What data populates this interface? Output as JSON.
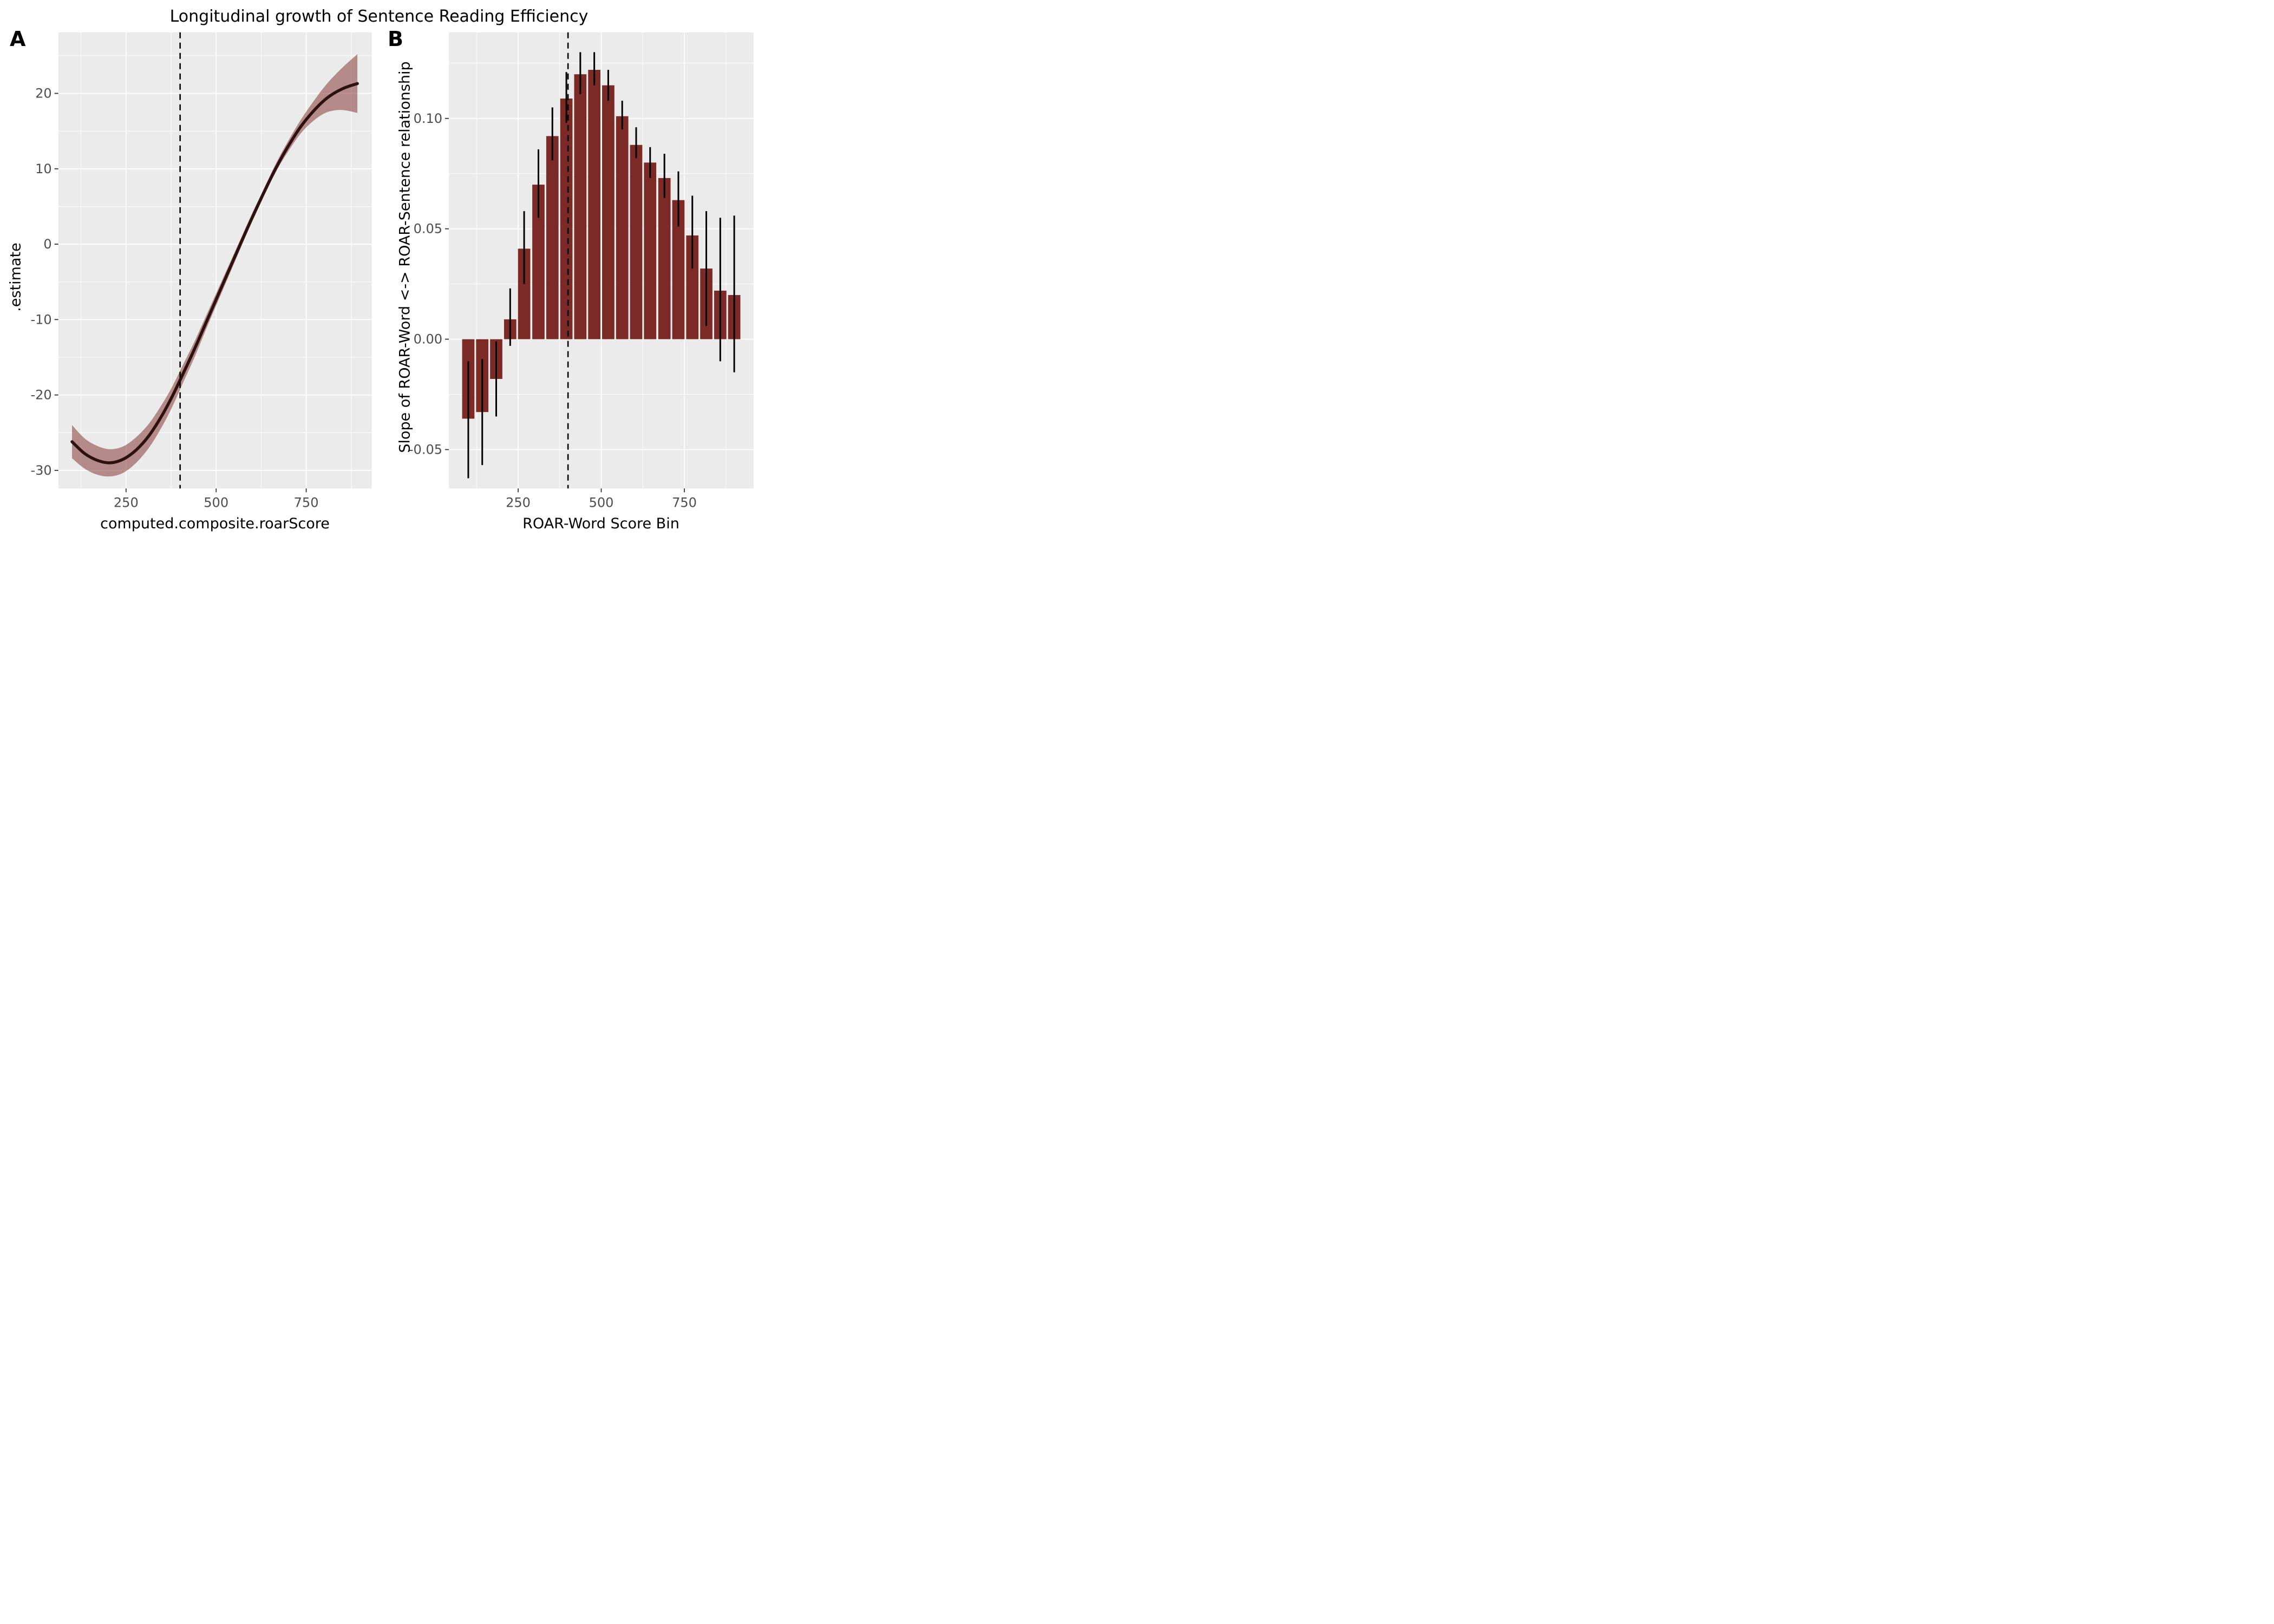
{
  "title": "Longitudinal growth of Sentence Reading Efficiency",
  "colors": {
    "panel_background": "#EBEBEB",
    "gridline": "#FFFFFF",
    "curve": "#2D1110",
    "ribbon": "#7C2A26",
    "ribbon_opacity": 0.5,
    "bar_fill": "#7C2A26",
    "error_bar": "#000000",
    "dashed_line": "#000000",
    "tick_label_text": "#4D4D4D",
    "tick_mark": "#333333",
    "axis_title_text": "#000000"
  },
  "panels": {
    "a": {
      "letter": "A",
      "x_title": "computed.composite.roarScore",
      "y_title": ".estimate",
      "x_tick_labels": [
        "250",
        "500",
        "750"
      ],
      "x_tick_values": [
        250,
        500,
        750
      ],
      "x_minor_values": [
        125,
        375,
        625,
        875
      ],
      "y_tick_labels": [
        "20",
        "10",
        "0",
        "-10",
        "-20",
        "-30"
      ],
      "y_tick_values": [
        20,
        10,
        0,
        -10,
        -20,
        -30
      ],
      "y_minor_values": [
        25,
        15,
        5,
        -5,
        -15,
        -25
      ],
      "xlim": [
        62,
        932
      ],
      "ylim": [
        -32.4,
        28.1
      ],
      "vline_x": 400
    },
    "b": {
      "letter": "B",
      "x_title": "ROAR-Word Score Bin",
      "y_title": "Slope of ROAR-Word <-> ROAR-Sentence relationship",
      "x_tick_labels": [
        "250",
        "500",
        "750"
      ],
      "x_tick_values": [
        250,
        500,
        750
      ],
      "x_minor_values": [
        125,
        375,
        625,
        875
      ],
      "y_tick_labels": [
        "0.10",
        "0.05",
        "0.00",
        "-0.05"
      ],
      "y_tick_values": [
        0.1,
        0.05,
        0.0,
        -0.05
      ],
      "y_minor_values": [
        0.125,
        0.075,
        0.025,
        -0.025
      ],
      "xlim": [
        41.5,
        958
      ],
      "ylim": [
        -0.0676,
        0.139
      ],
      "vline_x": 400
    }
  },
  "chart_data": [
    {
      "panel": "A",
      "type": "line",
      "title": "Longitudinal growth of Sentence Reading Efficiency",
      "xlabel": "computed.composite.roarScore",
      "ylabel": ".estimate",
      "xlim": [
        62,
        932
      ],
      "ylim": [
        -32.4,
        28.1
      ],
      "grid": true,
      "vline_x": 400,
      "x": [
        100,
        136,
        172,
        207,
        243,
        278,
        312,
        345,
        377,
        408,
        440,
        472,
        504,
        536,
        568,
        600,
        633,
        666,
        700,
        735,
        771,
        808,
        850,
        892
      ],
      "y": [
        -26.2,
        -27.8,
        -28.7,
        -29.0,
        -28.5,
        -27.3,
        -25.5,
        -23.1,
        -20.3,
        -17.2,
        -13.9,
        -10.4,
        -6.9,
        -3.4,
        0.1,
        3.5,
        6.9,
        10.1,
        13.0,
        15.6,
        17.7,
        19.4,
        20.6,
        21.3
      ],
      "ribbon_lower": [
        -28.4,
        -29.8,
        -30.6,
        -30.8,
        -30.3,
        -29.0,
        -27.1,
        -24.6,
        -21.7,
        -18.4,
        -15.0,
        -11.3,
        -7.7,
        -4.1,
        -0.5,
        3.0,
        6.4,
        9.6,
        12.3,
        14.7,
        16.4,
        17.5,
        17.8,
        17.4
      ],
      "ribbon_upper": [
        -24.0,
        -25.8,
        -26.8,
        -27.2,
        -26.8,
        -25.6,
        -23.9,
        -21.6,
        -19.0,
        -16.0,
        -12.9,
        -9.5,
        -6.1,
        -2.7,
        0.7,
        4.1,
        7.4,
        10.7,
        13.7,
        16.5,
        19.0,
        21.3,
        23.4,
        25.2
      ]
    },
    {
      "panel": "B",
      "type": "bar",
      "xlabel": "ROAR-Word Score Bin",
      "ylabel": "Slope of ROAR-Word <-> ROAR-Sentence relationship",
      "xlim": [
        41.5,
        958
      ],
      "ylim": [
        -0.0676,
        0.139
      ],
      "grid": true,
      "vline_x": 400,
      "bar_width_units": 37,
      "bin_centers": [
        100,
        142,
        184,
        226,
        268,
        311,
        353,
        395,
        437,
        479,
        521,
        563,
        605,
        647,
        690,
        732,
        774,
        816,
        858,
        900
      ],
      "values": [
        -0.036,
        -0.033,
        -0.018,
        0.009,
        0.041,
        0.07,
        0.092,
        0.109,
        0.12,
        0.122,
        0.115,
        0.101,
        0.088,
        0.08,
        0.073,
        0.063,
        0.047,
        0.032,
        0.022,
        0.02
      ],
      "ci_lower": [
        -0.063,
        -0.057,
        -0.035,
        -0.003,
        0.025,
        0.055,
        0.081,
        0.098,
        0.111,
        0.115,
        0.108,
        0.095,
        0.082,
        0.073,
        0.064,
        0.051,
        0.032,
        0.006,
        -0.01,
        -0.015
      ],
      "ci_upper": [
        -0.01,
        -0.009,
        -0.001,
        0.023,
        0.058,
        0.086,
        0.105,
        0.121,
        0.13,
        0.13,
        0.122,
        0.108,
        0.096,
        0.087,
        0.084,
        0.076,
        0.065,
        0.058,
        0.055,
        0.056
      ]
    }
  ]
}
